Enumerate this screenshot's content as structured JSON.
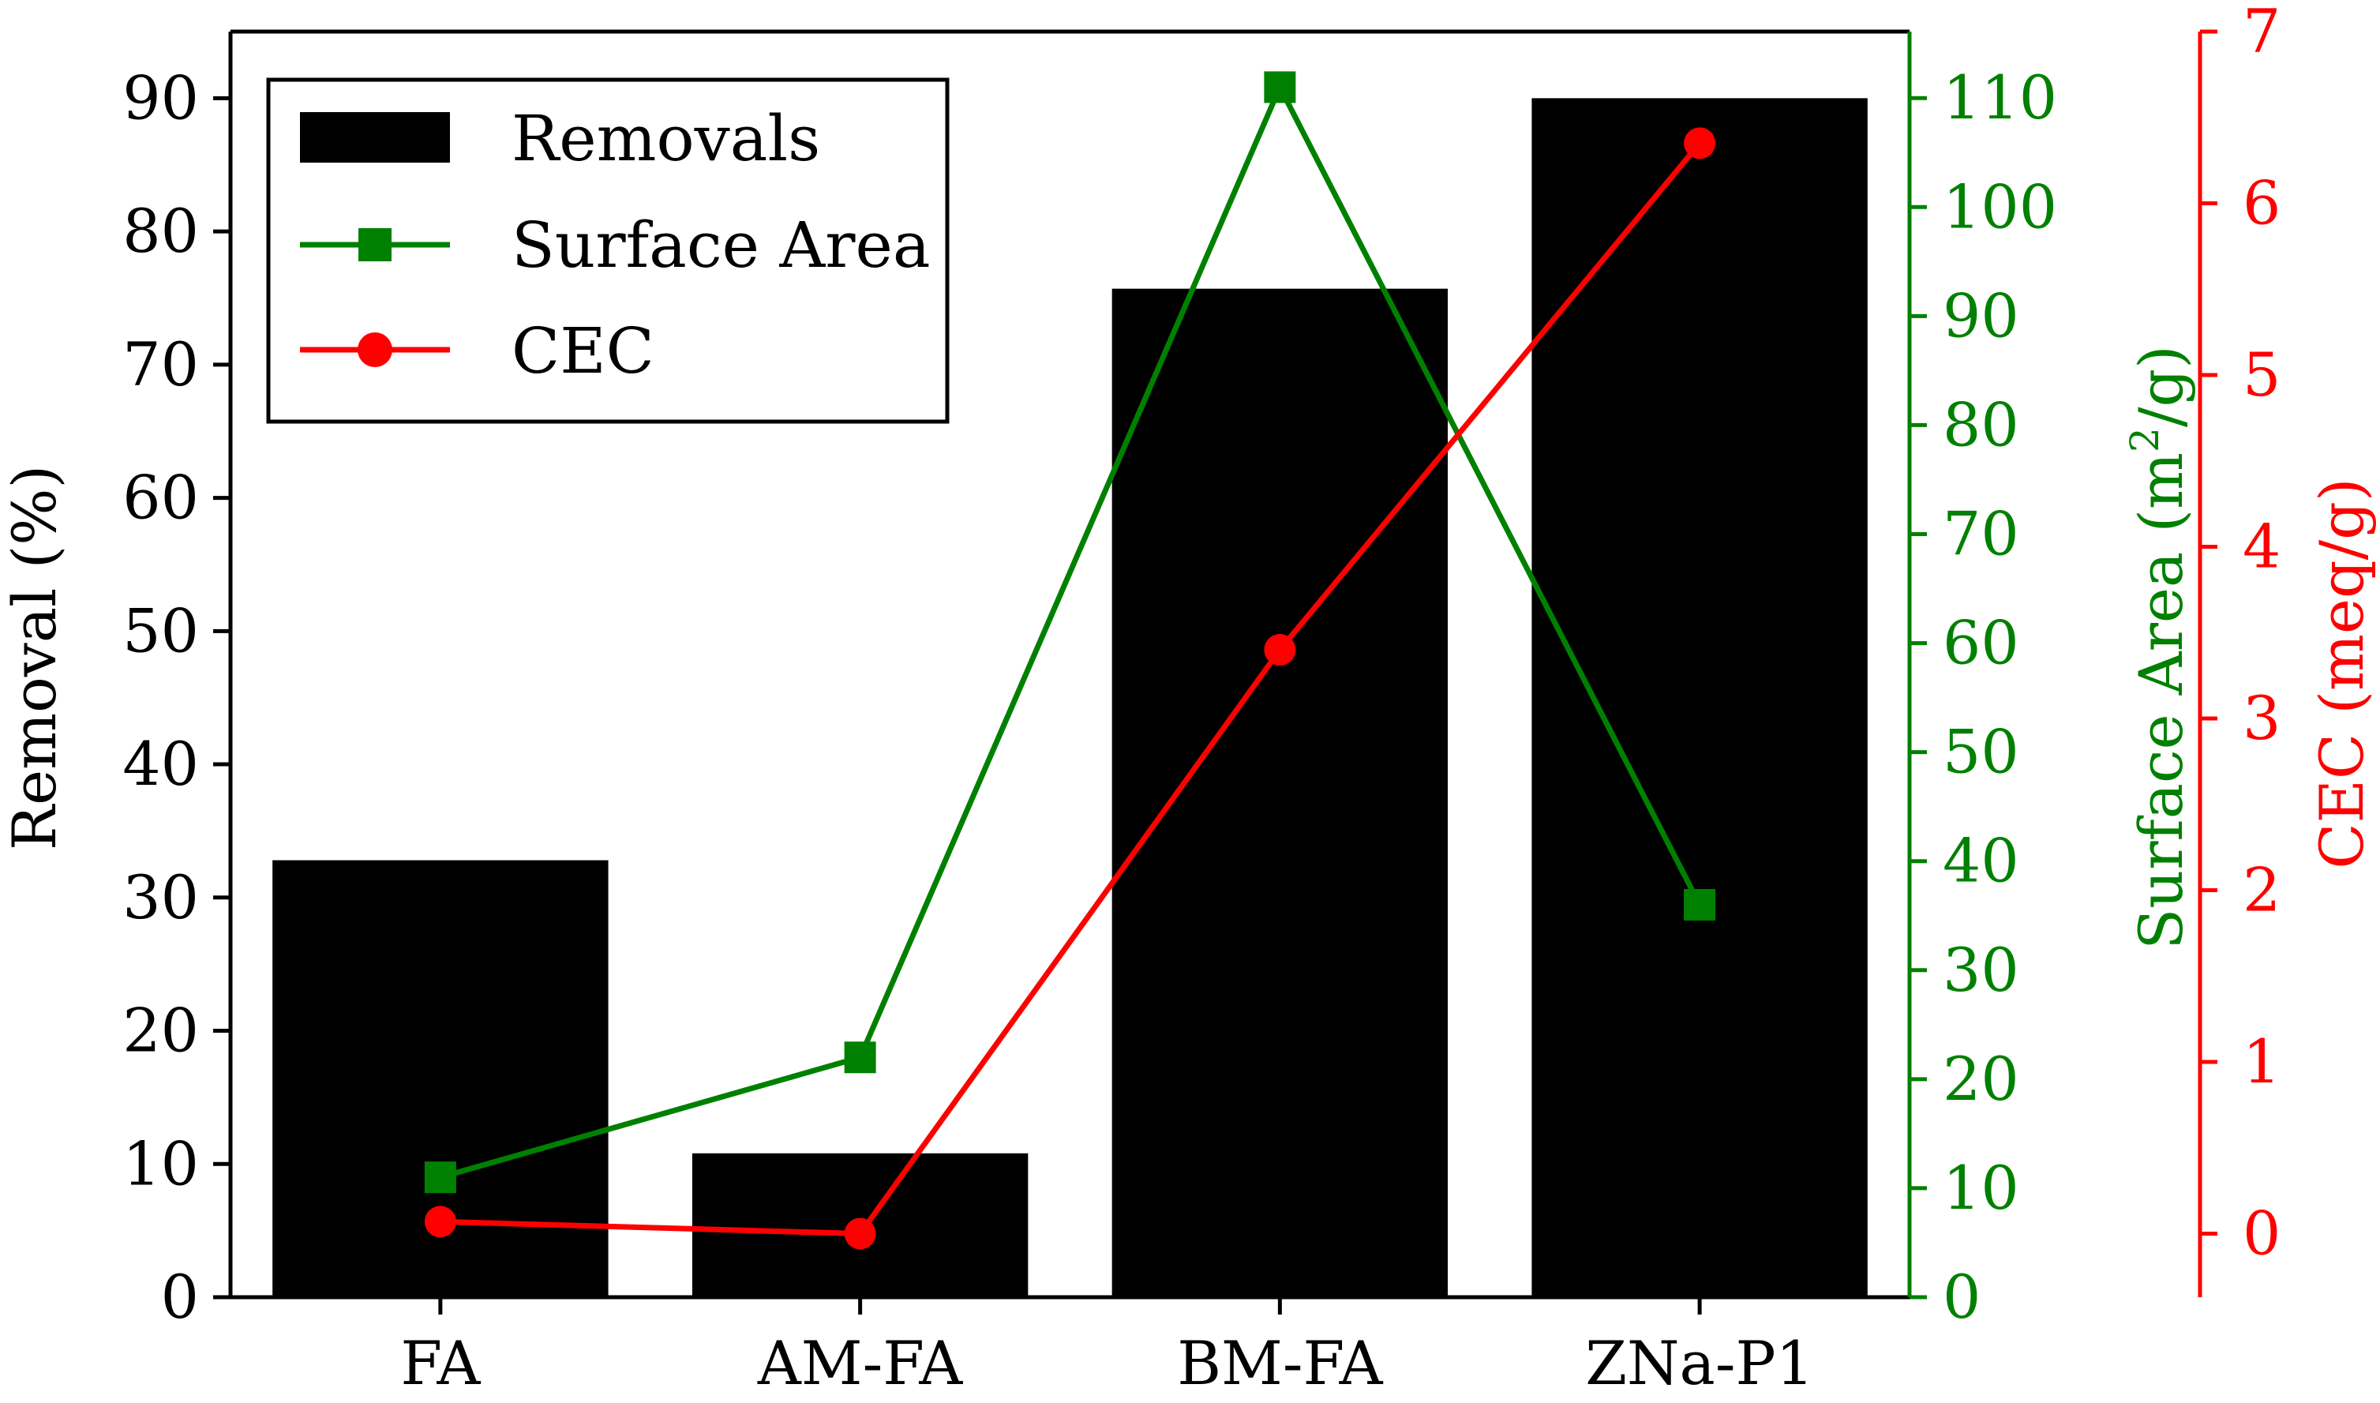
{
  "chart_data": {
    "type": "bar",
    "categories": [
      "FA",
      "AM-FA",
      "BM-FA",
      "ZNa-P1"
    ],
    "series": [
      {
        "name": "Removals",
        "type": "bar",
        "axis": "left",
        "values": [
          32.8,
          10.8,
          75.7,
          90.0
        ],
        "color": "#000000"
      },
      {
        "name": "Surface Area",
        "type": "line",
        "marker": "square",
        "axis": "right1",
        "values": [
          11,
          22,
          111,
          36
        ],
        "color": "#008000"
      },
      {
        "name": "CEC",
        "type": "line",
        "marker": "circle",
        "axis": "right2",
        "values": [
          0.07,
          0.0,
          3.4,
          6.35
        ],
        "color": "#ff0000"
      }
    ],
    "axes": {
      "left": {
        "label": "Removal (%)",
        "ylim": [
          0,
          95
        ],
        "ticks": [
          "0",
          "10",
          "20",
          "30",
          "40",
          "50",
          "60",
          "70",
          "80",
          "90"
        ],
        "color": "#000000"
      },
      "right1": {
        "label_main": "Surface Area (m",
        "label_sup": "2",
        "label_tail": "/g)",
        "ylim": [
          0,
          116.1
        ],
        "ticks": [
          "0",
          "10",
          "20",
          "30",
          "40",
          "50",
          "60",
          "70",
          "80",
          "90",
          "100",
          "110"
        ],
        "color": "#008000"
      },
      "right2": {
        "label": "CEC (meq/g)",
        "ylim": [
          -0.37,
          7.0
        ],
        "ticks": [
          "0",
          "1",
          "2",
          "3",
          "4",
          "5",
          "6",
          "7"
        ],
        "color": "#ff0000"
      }
    },
    "legend": {
      "placement": "top-left",
      "entries": [
        "Removals",
        "Surface Area",
        "CEC"
      ]
    },
    "grid": false
  }
}
